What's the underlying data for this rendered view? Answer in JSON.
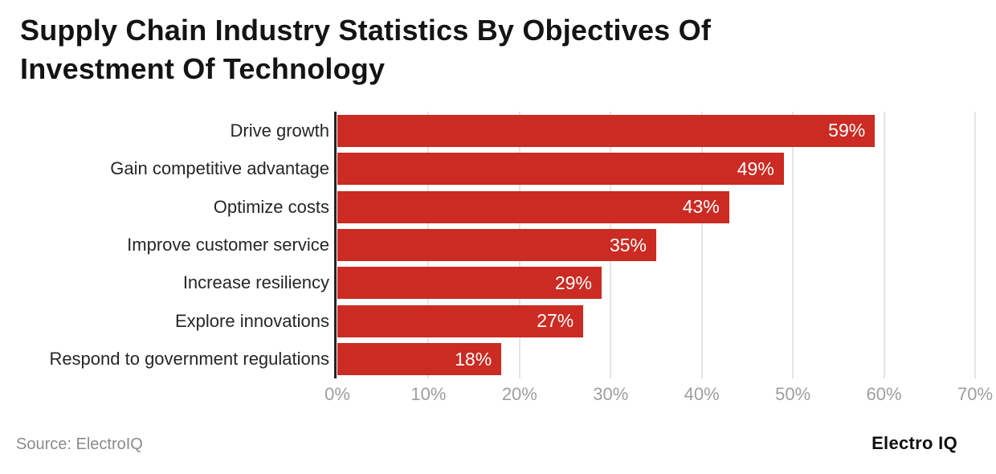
{
  "header": {
    "title_line1": "Supply Chain Industry Statistics By Objectives Of",
    "title_line2": "Investment Of Technology"
  },
  "chart_data": {
    "type": "bar",
    "orientation": "horizontal",
    "title": "Supply Chain Industry Statistics By Objectives Of Investment Of Technology",
    "categories": [
      "Drive growth",
      "Gain competitive advantage",
      "Optimize costs",
      "Improve customer service",
      "Increase resiliency",
      "Explore innovations",
      "Respond to government regulations"
    ],
    "values": [
      59,
      49,
      43,
      35,
      29,
      27,
      18
    ],
    "value_labels": [
      "59%",
      "49%",
      "43%",
      "35%",
      "29%",
      "27%",
      "18%"
    ],
    "xlabel": "",
    "ylabel": "",
    "xlim": [
      0,
      70
    ],
    "x_tick_step": 10,
    "x_ticks": [
      "0%",
      "10%",
      "20%",
      "30%",
      "40%",
      "50%",
      "60%",
      "70%"
    ],
    "grid": true,
    "legend": false,
    "bar_color": "#cb2b22",
    "value_label_color": "#ffffff",
    "gridline_color": "#e4e4e4",
    "tick_label_color": "#9e9e9e"
  },
  "footer": {
    "source": "Source: ElectroIQ",
    "brand": "Electro IQ"
  }
}
